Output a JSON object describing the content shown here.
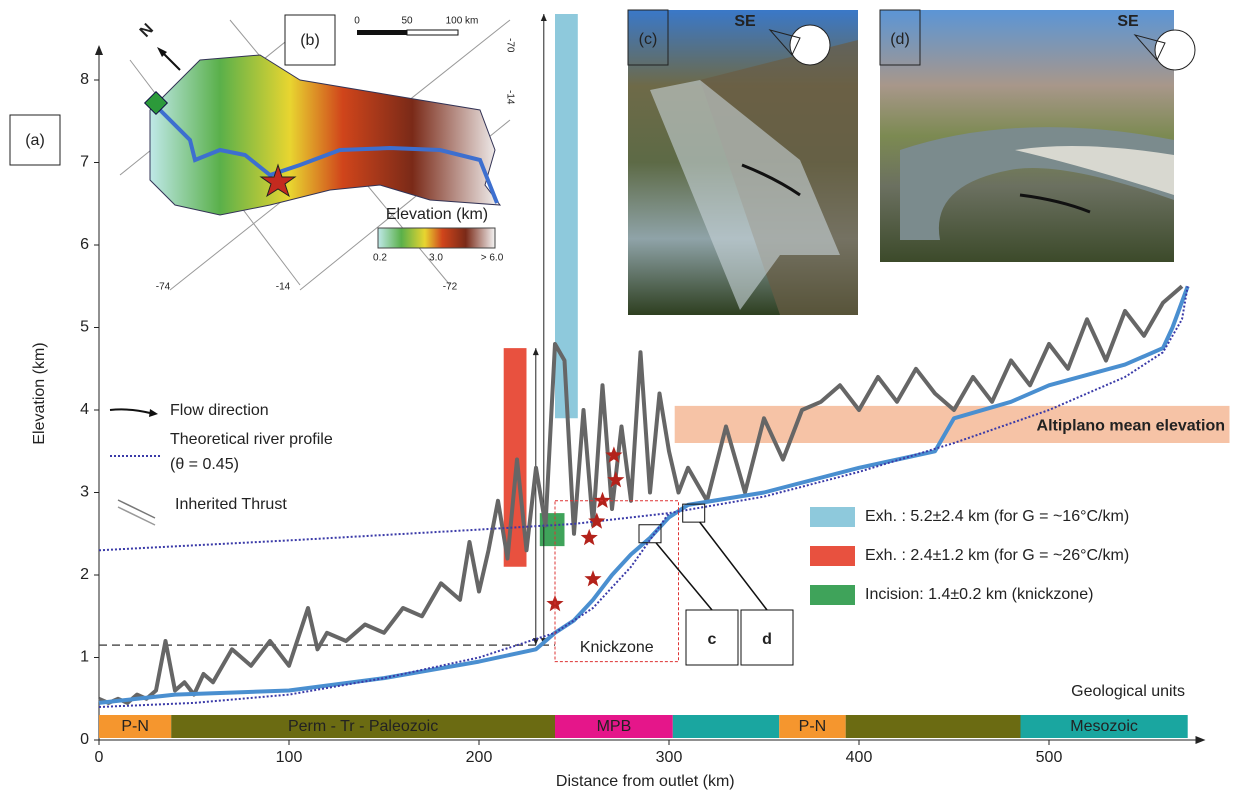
{
  "chart_data": {
    "type": "line",
    "xlabel": "Distance from outlet (km)",
    "ylabel": "Elevation (km)",
    "xlim": [
      0,
      575
    ],
    "ylim": [
      0,
      8.4
    ],
    "xticks": [
      0,
      100,
      200,
      300,
      400,
      500
    ],
    "yticks": [
      0,
      1,
      2,
      3,
      4,
      5,
      6,
      7,
      8
    ],
    "panel_label": "(a)",
    "series": [
      {
        "color": "#666666",
        "style": "solid",
        "width": 4,
        "x": [
          0,
          5,
          10,
          15,
          20,
          25,
          30,
          35,
          40,
          45,
          50,
          55,
          60,
          70,
          80,
          90,
          100,
          110,
          115,
          120,
          130,
          140,
          150,
          160,
          170,
          180,
          190,
          195,
          200,
          205,
          210,
          215,
          220,
          225,
          230,
          235,
          240,
          245,
          250,
          255,
          260,
          265,
          270,
          275,
          280,
          285,
          290,
          295,
          300,
          305,
          310,
          320,
          330,
          340,
          350,
          360,
          370,
          380,
          390,
          400,
          410,
          420,
          430,
          440,
          450,
          460,
          470,
          480,
          490,
          500,
          510,
          520,
          530,
          540,
          550,
          560,
          570
        ],
        "values": [
          0.5,
          0.45,
          0.5,
          0.45,
          0.55,
          0.5,
          0.6,
          1.2,
          0.6,
          0.7,
          0.55,
          0.8,
          0.7,
          1.1,
          0.9,
          1.2,
          0.9,
          1.6,
          1.1,
          1.3,
          1.2,
          1.4,
          1.3,
          1.6,
          1.5,
          1.9,
          1.7,
          2.4,
          1.8,
          2.3,
          2.9,
          2.2,
          3.4,
          2.3,
          3.3,
          2.6,
          4.8,
          4.6,
          2.5,
          4.0,
          2.6,
          4.3,
          2.8,
          3.8,
          2.9,
          4.7,
          3.0,
          4.2,
          3.5,
          3.0,
          3.3,
          2.9,
          3.8,
          3.0,
          3.9,
          3.4,
          4.0,
          4.1,
          4.3,
          4.0,
          4.4,
          4.1,
          4.5,
          4.2,
          4.0,
          4.4,
          4.1,
          4.6,
          4.3,
          4.8,
          4.5,
          5.1,
          4.6,
          5.2,
          4.9,
          5.3,
          5.5
        ]
      },
      {
        "color": "#4a8fd0",
        "style": "solid",
        "width": 4,
        "x": [
          0,
          20,
          40,
          100,
          150,
          200,
          230,
          240,
          250,
          260,
          270,
          280,
          290,
          300,
          310,
          350,
          400,
          440,
          450,
          480,
          500,
          540,
          560,
          565,
          573
        ],
        "values": [
          0.45,
          0.5,
          0.55,
          0.6,
          0.75,
          0.95,
          1.1,
          1.3,
          1.45,
          1.7,
          2.0,
          2.25,
          2.45,
          2.7,
          2.85,
          3.0,
          3.3,
          3.5,
          3.9,
          4.1,
          4.3,
          4.55,
          4.75,
          5.0,
          5.5
        ]
      },
      {
        "name": "Theoretical river profile",
        "color": "#3a3aa8",
        "style": "dotted",
        "width": 2,
        "x": [
          0,
          100,
          200,
          250,
          300,
          350,
          400,
          450,
          500,
          540,
          560,
          570,
          573
        ],
        "values": [
          2.3,
          2.42,
          2.55,
          2.62,
          2.75,
          2.95,
          3.25,
          3.6,
          4.0,
          4.4,
          4.7,
          5.1,
          5.5
        ]
      },
      {
        "color": "#3a3aa8",
        "style": "dotted",
        "width": 2,
        "x": [
          0,
          50,
          100,
          150,
          200,
          240,
          260,
          280,
          300
        ],
        "values": [
          0.4,
          0.45,
          0.55,
          0.75,
          1.0,
          1.3,
          1.6,
          2.1,
          2.75
        ]
      }
    ],
    "legend_extra": [
      "Flow direction",
      "(θ = 0.45)",
      "Inherited Thrust"
    ],
    "ranges": [
      {
        "name": "Exh. : 5.2±2.4 km (for G = ~16°C/km)",
        "color": "#8ec9dc",
        "x": [
          240,
          252
        ],
        "y": [
          3.9,
          8.8
        ]
      },
      {
        "name": "Exh. : 2.4±1.2 km (for G = ~26°C/km)",
        "color": "#e8513f",
        "x": [
          213,
          225
        ],
        "y": [
          2.1,
          4.75
        ]
      },
      {
        "name": "Incision: 1.4±0.2 km (knickzone)",
        "color": "#3fa35a",
        "x": [
          232,
          245
        ],
        "y": [
          2.35,
          2.75
        ]
      }
    ],
    "reference_line": 1.15,
    "band": {
      "label": "Altiplano mean elevation",
      "color": "#f6c3a6",
      "x": [
        303,
        595
      ],
      "y": [
        3.6,
        4.05
      ]
    },
    "stars": {
      "color": "#b3221b",
      "x": [
        240,
        260,
        258,
        262,
        265,
        272,
        271
      ],
      "values": [
        1.65,
        1.95,
        2.45,
        2.65,
        2.9,
        3.15,
        3.45
      ]
    },
    "knickzone": {
      "label": "Knickzone",
      "x": [
        240,
        305
      ],
      "y": [
        0.95,
        2.9
      ]
    },
    "photo_sites": [
      {
        "label": "c",
        "x": 290,
        "y": 2.5
      },
      {
        "label": "d",
        "x": 313,
        "y": 2.75
      }
    ],
    "geology": {
      "title": "Geological units",
      "units": [
        {
          "label": "P-N",
          "start": 0,
          "end": 38,
          "color": "#f5962e"
        },
        {
          "label": "Perm - Tr - Paleozoic",
          "start": 38,
          "end": 240,
          "color": "#6b6b12"
        },
        {
          "label": "MPB",
          "start": 240,
          "end": 302,
          "color": "#e5168a"
        },
        {
          "label": null,
          "start": 302,
          "end": 358,
          "color": "#1aa6a0"
        },
        {
          "label": "P-N",
          "start": 358,
          "end": 393,
          "color": "#f5962e"
        },
        {
          "label": null,
          "start": 393,
          "end": 485,
          "color": "#6b6b12"
        },
        {
          "label": "Mesozoic",
          "start": 485,
          "end": 573,
          "color": "#1aa6a0"
        }
      ]
    }
  },
  "map": {
    "label": "(b)",
    "north": "N",
    "scale": [
      "0",
      "50",
      "100 km"
    ],
    "colorbar_title": "Elevation (km)",
    "colorbar_ticks": [
      "0.2",
      "3.0",
      "> 6.0"
    ],
    "coords": [
      "-74",
      "-14",
      "-72",
      "-70",
      "-14"
    ]
  },
  "photos": [
    {
      "label": "(c)",
      "direction": "SE"
    },
    {
      "label": "(d)",
      "direction": "SE"
    }
  ]
}
